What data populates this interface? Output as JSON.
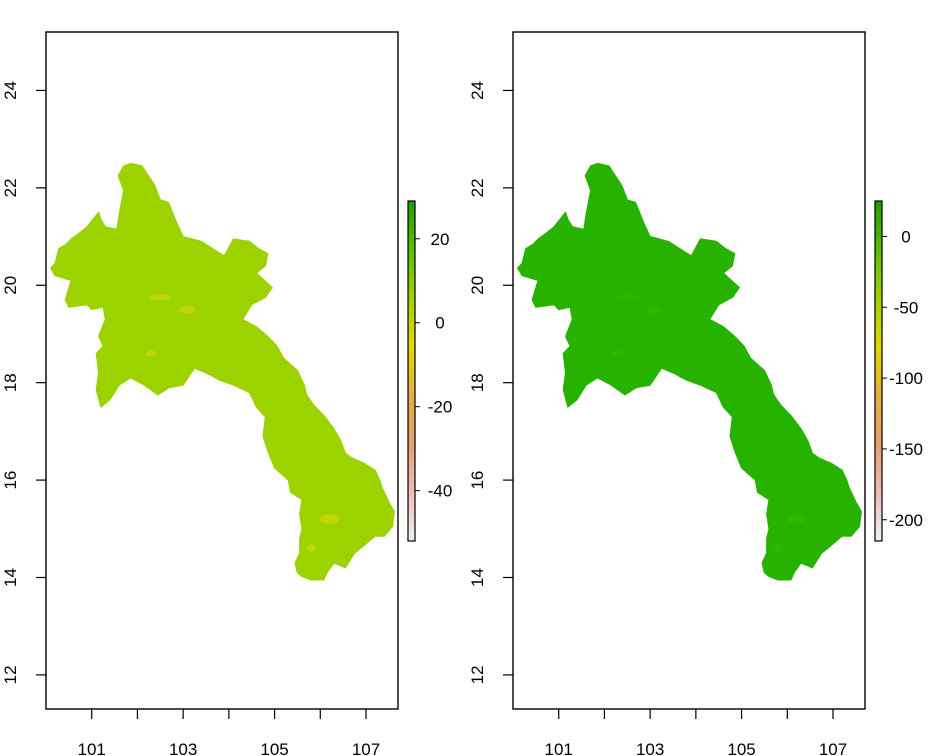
{
  "chart_data": [
    {
      "type": "heatmap",
      "title": "",
      "xlabel": "",
      "ylabel": "",
      "xlim": [
        100.0,
        107.7
      ],
      "ylim": [
        11.3,
        25.2
      ],
      "x_ticks": [
        "101",
        "103",
        "105",
        "107"
      ],
      "x_tick_values": [
        101,
        103,
        105,
        107
      ],
      "x_minor_ticks": [
        102,
        104,
        106
      ],
      "y_ticks": [
        "12",
        "14",
        "16",
        "18",
        "20",
        "22",
        "24"
      ],
      "y_tick_values": [
        12,
        14,
        16,
        18,
        20,
        22,
        24
      ],
      "fill_color": "#9cd200",
      "highlight_color": "#d2d800",
      "legend": {
        "placement": "right",
        "range": [
          -52,
          29
        ],
        "ticks": [
          "20",
          "0",
          "-20",
          "-40"
        ],
        "tick_values": [
          20,
          0,
          -20,
          -40
        ],
        "colors": [
          "#f2f2f2",
          "#eebcb8",
          "#e9a070",
          "#e5b040",
          "#e3d800",
          "#a3d100",
          "#5bbd00",
          "#1e9f00"
        ]
      }
    },
    {
      "type": "heatmap",
      "title": "",
      "xlabel": "",
      "ylabel": "",
      "xlim": [
        100.0,
        107.7
      ],
      "ylim": [
        11.3,
        25.2
      ],
      "x_ticks": [
        "101",
        "103",
        "105",
        "107"
      ],
      "x_tick_values": [
        101,
        103,
        105,
        107
      ],
      "x_minor_ticks": [
        102,
        104,
        106
      ],
      "y_ticks": [
        "12",
        "14",
        "16",
        "18",
        "20",
        "22",
        "24"
      ],
      "y_tick_values": [
        12,
        14,
        16,
        18,
        20,
        22,
        24
      ],
      "fill_color": "#27b200",
      "highlight_color": "#33b800",
      "legend": {
        "placement": "right",
        "range": [
          -215,
          25
        ],
        "ticks": [
          "0",
          "-50",
          "-100",
          "-150",
          "-200"
        ],
        "tick_values": [
          0,
          -50,
          -100,
          -150,
          -200
        ],
        "colors": [
          "#f2f2f2",
          "#eebcb8",
          "#e9a070",
          "#e5b040",
          "#e3d800",
          "#a3d100",
          "#5bbd00",
          "#1e9f00"
        ]
      }
    }
  ]
}
